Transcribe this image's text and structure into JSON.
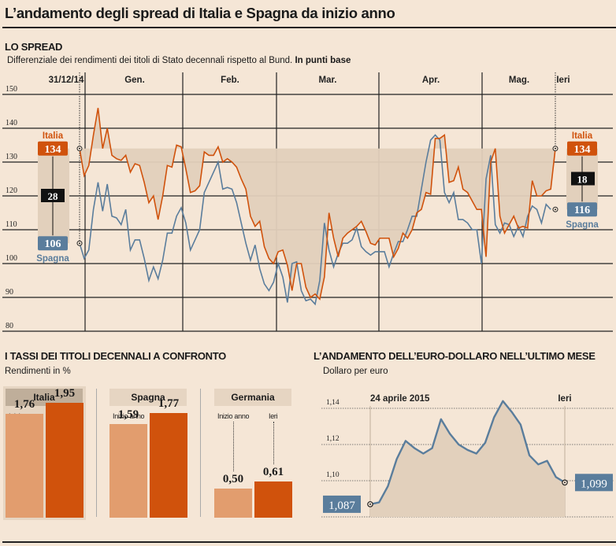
{
  "title": "L’andamento degli spread di Italia e Spagna da inizio anno",
  "spread": {
    "section_title": "LO SPREAD",
    "subtitle_main": "Differenziale dei rendimenti dei titoli di Stato decennali rispetto al Bund.",
    "subtitle_bold": "In punti base"
  },
  "bonds": {
    "section_title": "I TASSI DEI TITOLI DECENNALI A CONFRONTO",
    "subtitle": "Rendimenti in %",
    "col_start": "Inizio anno",
    "col_end": "Ieri"
  },
  "fx": {
    "section_title": "L’ANDAMENTO DELL’EURO-DOLLARO NELL’ULTIMO MESE",
    "subtitle": "Dollaro per euro"
  },
  "colors": {
    "italia": "#d0520c",
    "spagna": "#5a7d9c",
    "band": "#e2d0bc",
    "bar_light": "#e29d6e",
    "bar_dark": "#d0520c",
    "background": "#f5e6d6"
  },
  "chart_data": [
    {
      "type": "line",
      "title": "LO SPREAD",
      "ylabel": "Punti base",
      "ylim": [
        80,
        150
      ],
      "yticks": [
        80,
        90,
        100,
        110,
        120,
        130,
        140,
        150
      ],
      "x_labels": [
        "31/12/14",
        "Gen.",
        "Feb.",
        "Mar.",
        "Apr.",
        "Mag.",
        "Ieri"
      ],
      "grid": true,
      "series": [
        {
          "name": "Italia",
          "start_value": 134,
          "end_value": 134,
          "values": [
            134,
            126,
            129,
            138,
            146,
            134,
            140,
            132,
            131,
            130.5,
            132,
            127,
            129.5,
            129,
            124,
            118,
            120,
            113,
            120,
            129,
            128.5,
            135,
            134.5,
            128,
            121,
            121.5,
            123,
            133,
            132,
            132,
            134.5,
            130,
            131,
            130,
            128.5,
            125,
            122,
            114,
            111,
            112.5,
            105,
            101.5,
            100,
            103.5,
            104,
            99.5,
            92,
            100,
            100,
            93,
            90,
            91,
            89.5,
            96,
            115,
            107.5,
            102,
            107.5,
            109,
            110,
            111,
            112.5,
            109.5,
            106,
            105.5,
            107.5,
            107.5,
            107.5,
            102,
            104.5,
            109,
            107.5,
            110,
            115,
            116,
            121,
            120.5,
            137,
            137,
            138,
            124,
            124.5,
            128.5,
            122,
            121,
            118.5,
            116,
            116,
            102,
            130,
            134,
            114,
            109,
            111.5,
            114,
            110.5,
            111,
            110.5,
            124.5,
            120,
            120,
            121.5,
            122,
            134
          ]
        },
        {
          "name": "Spagna",
          "start_value": 106,
          "end_value": 116,
          "values": [
            106,
            101.5,
            104,
            116,
            124,
            115.5,
            123.5,
            114,
            113.5,
            111.5,
            116,
            104,
            107,
            107,
            101.5,
            95,
            99,
            95.5,
            101,
            109,
            109,
            114,
            116.5,
            112,
            104,
            107,
            110,
            121,
            124,
            127,
            130,
            122,
            122.5,
            122,
            118,
            112,
            106,
            101,
            105.5,
            98.5,
            94,
            92,
            94.5,
            100,
            96,
            88.5,
            100,
            100.5,
            92,
            89,
            89.5,
            88,
            95,
            112,
            104,
            99,
            103,
            106,
            106,
            107,
            110.5,
            105,
            103.5,
            102.5,
            103.5,
            103.5,
            103.5,
            99,
            103,
            106.5,
            106.5,
            110,
            114,
            114,
            122,
            130,
            136.5,
            138,
            136.5,
            121,
            118,
            121,
            113,
            113,
            112,
            110,
            110,
            100,
            125,
            132,
            111.5,
            109,
            112,
            111.5,
            108,
            111,
            108,
            114,
            117,
            116,
            112,
            117.5,
            116
          ]
        }
      ],
      "annotations": [
        {
          "label": "Italia",
          "value": 134,
          "position": "start"
        },
        {
          "label": "Spagna",
          "value": 106,
          "position": "start"
        },
        {
          "label": "diff",
          "value": 28,
          "position": "start"
        },
        {
          "label": "Italia",
          "value": 134,
          "position": "end"
        },
        {
          "label": "Spagna",
          "value": 116,
          "position": "end"
        },
        {
          "label": "diff",
          "value": 18,
          "position": "end"
        }
      ]
    },
    {
      "type": "bar",
      "title": "I TASSI DEI TITOLI DECENNALI A CONFRONTO",
      "ylabel": "Rendimenti in %",
      "categories": [
        "Italia",
        "Spagna",
        "Germania"
      ],
      "series": [
        {
          "name": "Inizio anno",
          "values": [
            1.76,
            1.59,
            0.5
          ],
          "labels": [
            "1,76",
            "1,59",
            "0,50"
          ]
        },
        {
          "name": "Ieri",
          "values": [
            1.95,
            1.77,
            0.61
          ],
          "labels": [
            "1,95",
            "1,77",
            "0,61"
          ]
        }
      ],
      "highlighted": "Italia"
    },
    {
      "type": "area",
      "title": "L’ANDAMENTO DELL’EURO-DOLLARO NELL’ULTIMO MESE",
      "ylabel": "Dollaro per euro",
      "ylim": [
        1.08,
        1.145
      ],
      "yticks": [
        1.1,
        1.12,
        1.14
      ],
      "ytick_labels": [
        "1,10",
        "1,12",
        "1,14"
      ],
      "x_labels": [
        "24 aprile 2015",
        "Ieri"
      ],
      "grid": true,
      "start_label": "1,087",
      "end_label": "1,099",
      "values": [
        1.087,
        1.088,
        1.097,
        1.112,
        1.122,
        1.118,
        1.115,
        1.118,
        1.134,
        1.126,
        1.12,
        1.117,
        1.115,
        1.121,
        1.135,
        1.144,
        1.138,
        1.131,
        1.114,
        1.109,
        1.111,
        1.102,
        1.099
      ]
    }
  ]
}
